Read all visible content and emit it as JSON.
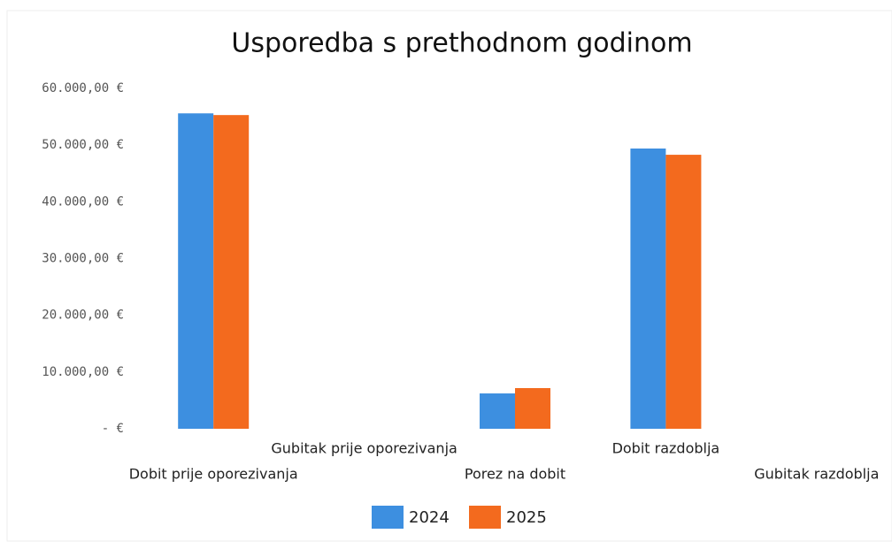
{
  "chart_data": {
    "type": "bar",
    "title": "Usporedba s prethodnom godinom",
    "categories": [
      "Dobit prije oporezivanja",
      "Gubitak prije oporezivanja",
      "Porez na dobit",
      "Dobit razdoblja",
      "Gubitak razdoblja"
    ],
    "series": [
      {
        "name": "2024",
        "color": "#3d8fe0",
        "values": [
          55600,
          0,
          6230,
          49400,
          0
        ]
      },
      {
        "name": "2025",
        "color": "#f36a1e",
        "values": [
          55300,
          0,
          7170,
          48300,
          0
        ]
      }
    ],
    "ylim": [
      0,
      60000
    ],
    "yticks": [
      {
        "value": 0,
        "label": "-   €"
      },
      {
        "value": 10000,
        "label": "10.000,00 €"
      },
      {
        "value": 20000,
        "label": "20.000,00 €"
      },
      {
        "value": 30000,
        "label": "30.000,00 €"
      },
      {
        "value": 40000,
        "label": "40.000,00 €"
      },
      {
        "value": 50000,
        "label": "50.000,00 €"
      },
      {
        "value": 60000,
        "label": "60.000,00 €"
      }
    ],
    "grid": false
  }
}
